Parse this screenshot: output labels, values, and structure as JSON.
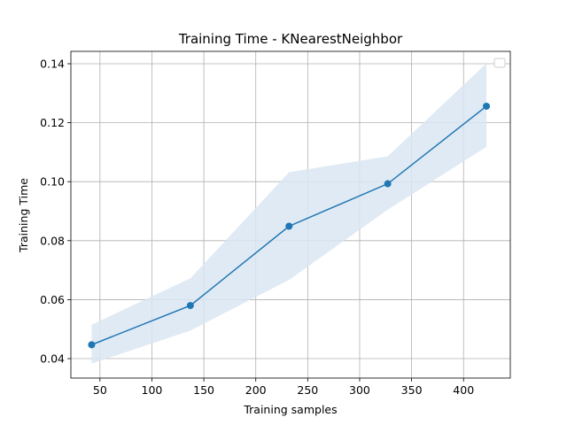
{
  "chart_data": {
    "type": "line",
    "title": "Training Time - KNearestNeighbor",
    "xlabel": "Training samples",
    "ylabel": "Training Time",
    "xlim": [
      22,
      445
    ],
    "ylim": [
      0.0334,
      0.1442
    ],
    "xticks": [
      50,
      100,
      150,
      200,
      250,
      300,
      350,
      400
    ],
    "yticks": [
      0.04,
      0.06,
      0.08,
      0.1,
      0.12,
      0.14
    ],
    "xtick_labels": [
      "50",
      "100",
      "150",
      "200",
      "250",
      "300",
      "350",
      "400"
    ],
    "ytick_labels": [
      "0.04",
      "0.06",
      "0.08",
      "0.10",
      "0.12",
      "0.14"
    ],
    "grid": true,
    "legend": {
      "placement": "top-right",
      "entries": []
    },
    "series": [
      {
        "x": [
          42,
          137,
          232,
          327,
          422
        ],
        "y": [
          0.0447,
          0.058,
          0.0849,
          0.0993,
          0.1256
        ],
        "lower": [
          0.0383,
          0.0495,
          0.0667,
          0.0905,
          0.1118
        ],
        "upper": [
          0.0515,
          0.0672,
          0.1032,
          0.1086,
          0.1401
        ],
        "color": "#1f77b4",
        "band_color": "#dbe6f2"
      }
    ]
  }
}
